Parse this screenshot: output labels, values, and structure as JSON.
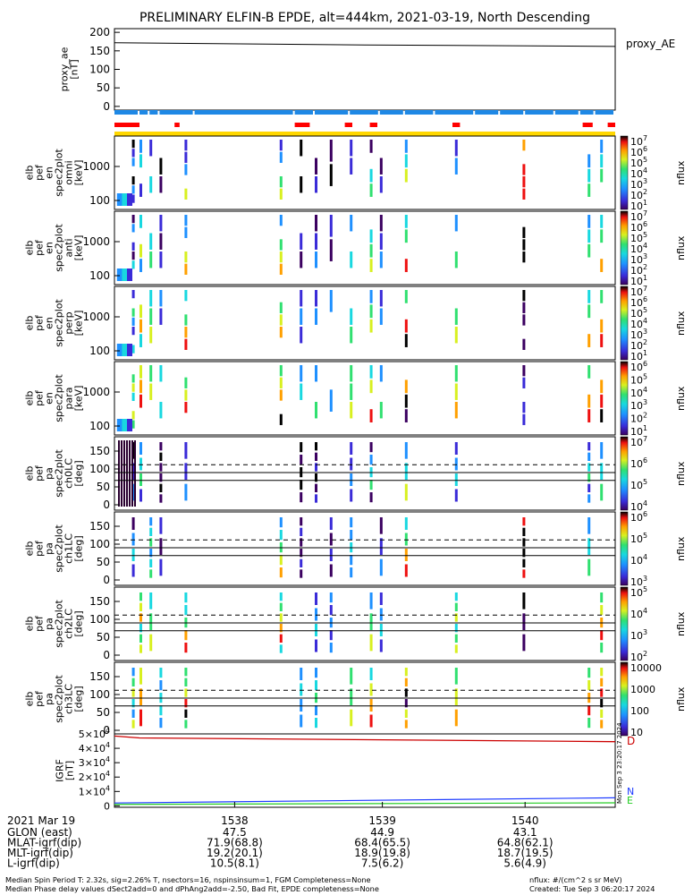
{
  "title": "PRELIMINARY ELFIN-B EPDE, alt=444km, 2021-03-19, North Descending",
  "colors": {
    "state_bar": "#1e88e5",
    "fgm_bar": "#ff0000",
    "epde_bar": "#ffd700",
    "trace": "#000000",
    "D": "#cc0000",
    "N": "#1e3cff",
    "E": "#22cc22",
    "dashed": "#000000"
  },
  "proxy_ae": {
    "ylabel_lines": [
      "proxy_ae",
      "[nT]"
    ],
    "right_label": "proxy_AE",
    "yticks": [
      "200",
      "150",
      "100",
      "50",
      "0"
    ],
    "ylim": [
      -10,
      210
    ]
  },
  "spectro_panels": [
    {
      "ylabel_lines": [
        "elb",
        "pef",
        "en",
        "spec2plot",
        "omni",
        "[keV]"
      ],
      "yticks": [
        "1000",
        "100"
      ],
      "cbar_ticks": [
        "10^7",
        "10^6",
        "10^5",
        "10^4",
        "10^3",
        "10^2",
        "10^1"
      ],
      "cbar_label": "nflux"
    },
    {
      "ylabel_lines": [
        "elb",
        "pef",
        "en",
        "spec2plot",
        "anti",
        "[keV]"
      ],
      "yticks": [
        "1000",
        "100"
      ],
      "cbar_ticks": [
        "10^7",
        "10^6",
        "10^5",
        "10^4",
        "10^3",
        "10^2",
        "10^1"
      ],
      "cbar_label": "nflux"
    },
    {
      "ylabel_lines": [
        "elb",
        "pef",
        "en",
        "spec2plot",
        "perp",
        "[keV]"
      ],
      "yticks": [
        "1000",
        "100"
      ],
      "cbar_ticks": [
        "10^7",
        "10^6",
        "10^5",
        "10^4",
        "10^3",
        "10^2",
        "10^1"
      ],
      "cbar_label": "nflux"
    },
    {
      "ylabel_lines": [
        "elb",
        "pef",
        "en",
        "spec2plot",
        "para",
        "[keV]"
      ],
      "yticks": [
        "1000",
        "100"
      ],
      "cbar_ticks": [
        "10^6",
        "10^5",
        "10^4",
        "10^3",
        "10^2",
        "10^1"
      ],
      "cbar_label": "nflux"
    }
  ],
  "pa_panels": [
    {
      "ylabel_lines": [
        "elb",
        "pef",
        "pa",
        "spec2plot",
        "ch0LC",
        "[deg]"
      ],
      "yticks": [
        "150",
        "100",
        "50",
        "0"
      ],
      "cbar_ticks": [
        "10^7",
        "10^6",
        "10^5",
        "10^4"
      ],
      "cbar_label": "nflux"
    },
    {
      "ylabel_lines": [
        "elb",
        "pef",
        "pa",
        "spec2plot",
        "ch1LC",
        "[deg]"
      ],
      "yticks": [
        "150",
        "100",
        "50",
        "0"
      ],
      "cbar_ticks": [
        "10^6",
        "10^5",
        "10^4",
        "10^3"
      ],
      "cbar_label": "nflux"
    },
    {
      "ylabel_lines": [
        "elb",
        "pef",
        "pa",
        "spec2plot",
        "ch2LC",
        "[deg]"
      ],
      "yticks": [
        "150",
        "100",
        "50",
        "0"
      ],
      "cbar_ticks": [
        "10^5",
        "10^4",
        "10^3",
        "10^2"
      ],
      "cbar_label": "nflux"
    },
    {
      "ylabel_lines": [
        "elb",
        "pef",
        "pa",
        "spec2plot",
        "ch3LC",
        "[deg]"
      ],
      "yticks": [
        "150",
        "100",
        "50",
        "0"
      ],
      "cbar_ticks": [
        "10000",
        "1000",
        "100",
        "10"
      ],
      "cbar_label": "nflux"
    }
  ],
  "igrf": {
    "ylabel_lines": [
      "IGRF",
      "[nT]"
    ],
    "yticks": [
      "5×10^4",
      "4×10^4",
      "3×10^4",
      "2×10^4",
      "1×10^4",
      "0"
    ],
    "ylim": [
      -1000,
      50000
    ],
    "legend": [
      "D",
      "N",
      "E"
    ],
    "side_note": "Mon Sep  3 23:20:17 2024"
  },
  "chart_data": {
    "type": "line",
    "title": "PRELIMINARY ELFIN-B EPDE, alt=444km, 2021-03-19, North Descending",
    "x_ticks": [
      "1538",
      "1539",
      "1540"
    ],
    "series": [
      {
        "name": "proxy_AE",
        "x": [
          0,
          0.5,
          1
        ],
        "values": [
          172,
          166,
          162
        ]
      },
      {
        "name": "D",
        "x": [
          0,
          0.05,
          1
        ],
        "values": [
          48500,
          47200,
          44600
        ]
      },
      {
        "name": "N",
        "x": [
          0,
          1
        ],
        "values": [
          2000,
          5600
        ]
      },
      {
        "name": "E",
        "x": [
          0,
          1
        ],
        "values": [
          1000,
          2100
        ]
      }
    ],
    "pa_dashed_deg": 112,
    "pa_solid_deg": [
      90,
      68
    ]
  },
  "footer": {
    "date": "2021 Mar 19",
    "time_ticks": [
      "1538",
      "1539",
      "1540"
    ],
    "rows": [
      {
        "label": "GLON (east)",
        "values": [
          "47.5",
          "44.9",
          "43.1"
        ]
      },
      {
        "label": "MLAT-igrf(dip)",
        "values": [
          "71.9(68.8)",
          "68.4(65.5)",
          "64.8(62.1)"
        ]
      },
      {
        "label": "MLT-igrf(dip)",
        "values": [
          "19.2(20.1)",
          "18.9(19.8)",
          "18.7(19.5)"
        ]
      },
      {
        "label": "L-igrf(dip)",
        "values": [
          "10.5(8.1)",
          "7.5(6.2)",
          "5.6(4.9)"
        ]
      }
    ],
    "notes": [
      "Median Spin Period T: 2.32s, sig=2.26% T, nsectors=16, nspinsinsum=1, FGM Completeness=None",
      "Median Phase delay values dSect2add=0 and dPhAng2add=-2.50, Bad Fit, EPDE completeness=None"
    ],
    "right_notes": [
      "nflux: #/(cm^2 s sr MeV)",
      "Created: Tue Sep  3 06:20:17 2024"
    ]
  }
}
